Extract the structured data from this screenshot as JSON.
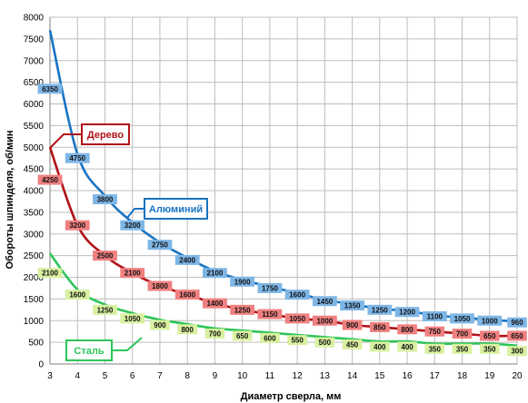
{
  "chart_data": {
    "type": "line",
    "title": "",
    "xlabel": "Диаметр сверла, мм",
    "ylabel": "Обороты шпинделя, об/мин",
    "xlim": [
      3,
      20
    ],
    "ylim": [
      0,
      8000
    ],
    "x_ticks": [
      3,
      4,
      5,
      6,
      7,
      8,
      9,
      10,
      11,
      12,
      13,
      14,
      15,
      16,
      17,
      18,
      19,
      20
    ],
    "y_ticks": [
      0,
      500,
      1000,
      1500,
      2000,
      2500,
      3000,
      3500,
      4000,
      4500,
      5000,
      5500,
      6000,
      6500,
      7000,
      7500,
      8000
    ],
    "grid": true,
    "x": [
      3,
      4,
      5,
      6,
      7,
      8,
      9,
      10,
      11,
      12,
      13,
      14,
      15,
      16,
      17,
      18,
      19,
      20
    ],
    "series": [
      {
        "name": "Алюминий",
        "color": "#1874c2",
        "label_color": "#7eb6e6",
        "curve_start": 7700,
        "values": [
          6350,
          4750,
          3800,
          3200,
          2750,
          2400,
          2100,
          1900,
          1750,
          1600,
          1450,
          1350,
          1250,
          1200,
          1100,
          1050,
          1000,
          960
        ]
      },
      {
        "name": "Дерево",
        "color": "#b01218",
        "label_color": "#f08080",
        "curve_start": 5000,
        "values": [
          4250,
          3200,
          2500,
          2100,
          1800,
          1600,
          1400,
          1250,
          1150,
          1050,
          1000,
          900,
          850,
          800,
          750,
          700,
          650,
          650
        ]
      },
      {
        "name": "Сталь",
        "color": "#2ec45a",
        "label_color": "#d8f0a0",
        "curve_start": 2550,
        "values": [
          2100,
          1600,
          1250,
          1050,
          900,
          800,
          700,
          650,
          600,
          550,
          500,
          450,
          400,
          400,
          350,
          350,
          350,
          300
        ]
      }
    ]
  }
}
